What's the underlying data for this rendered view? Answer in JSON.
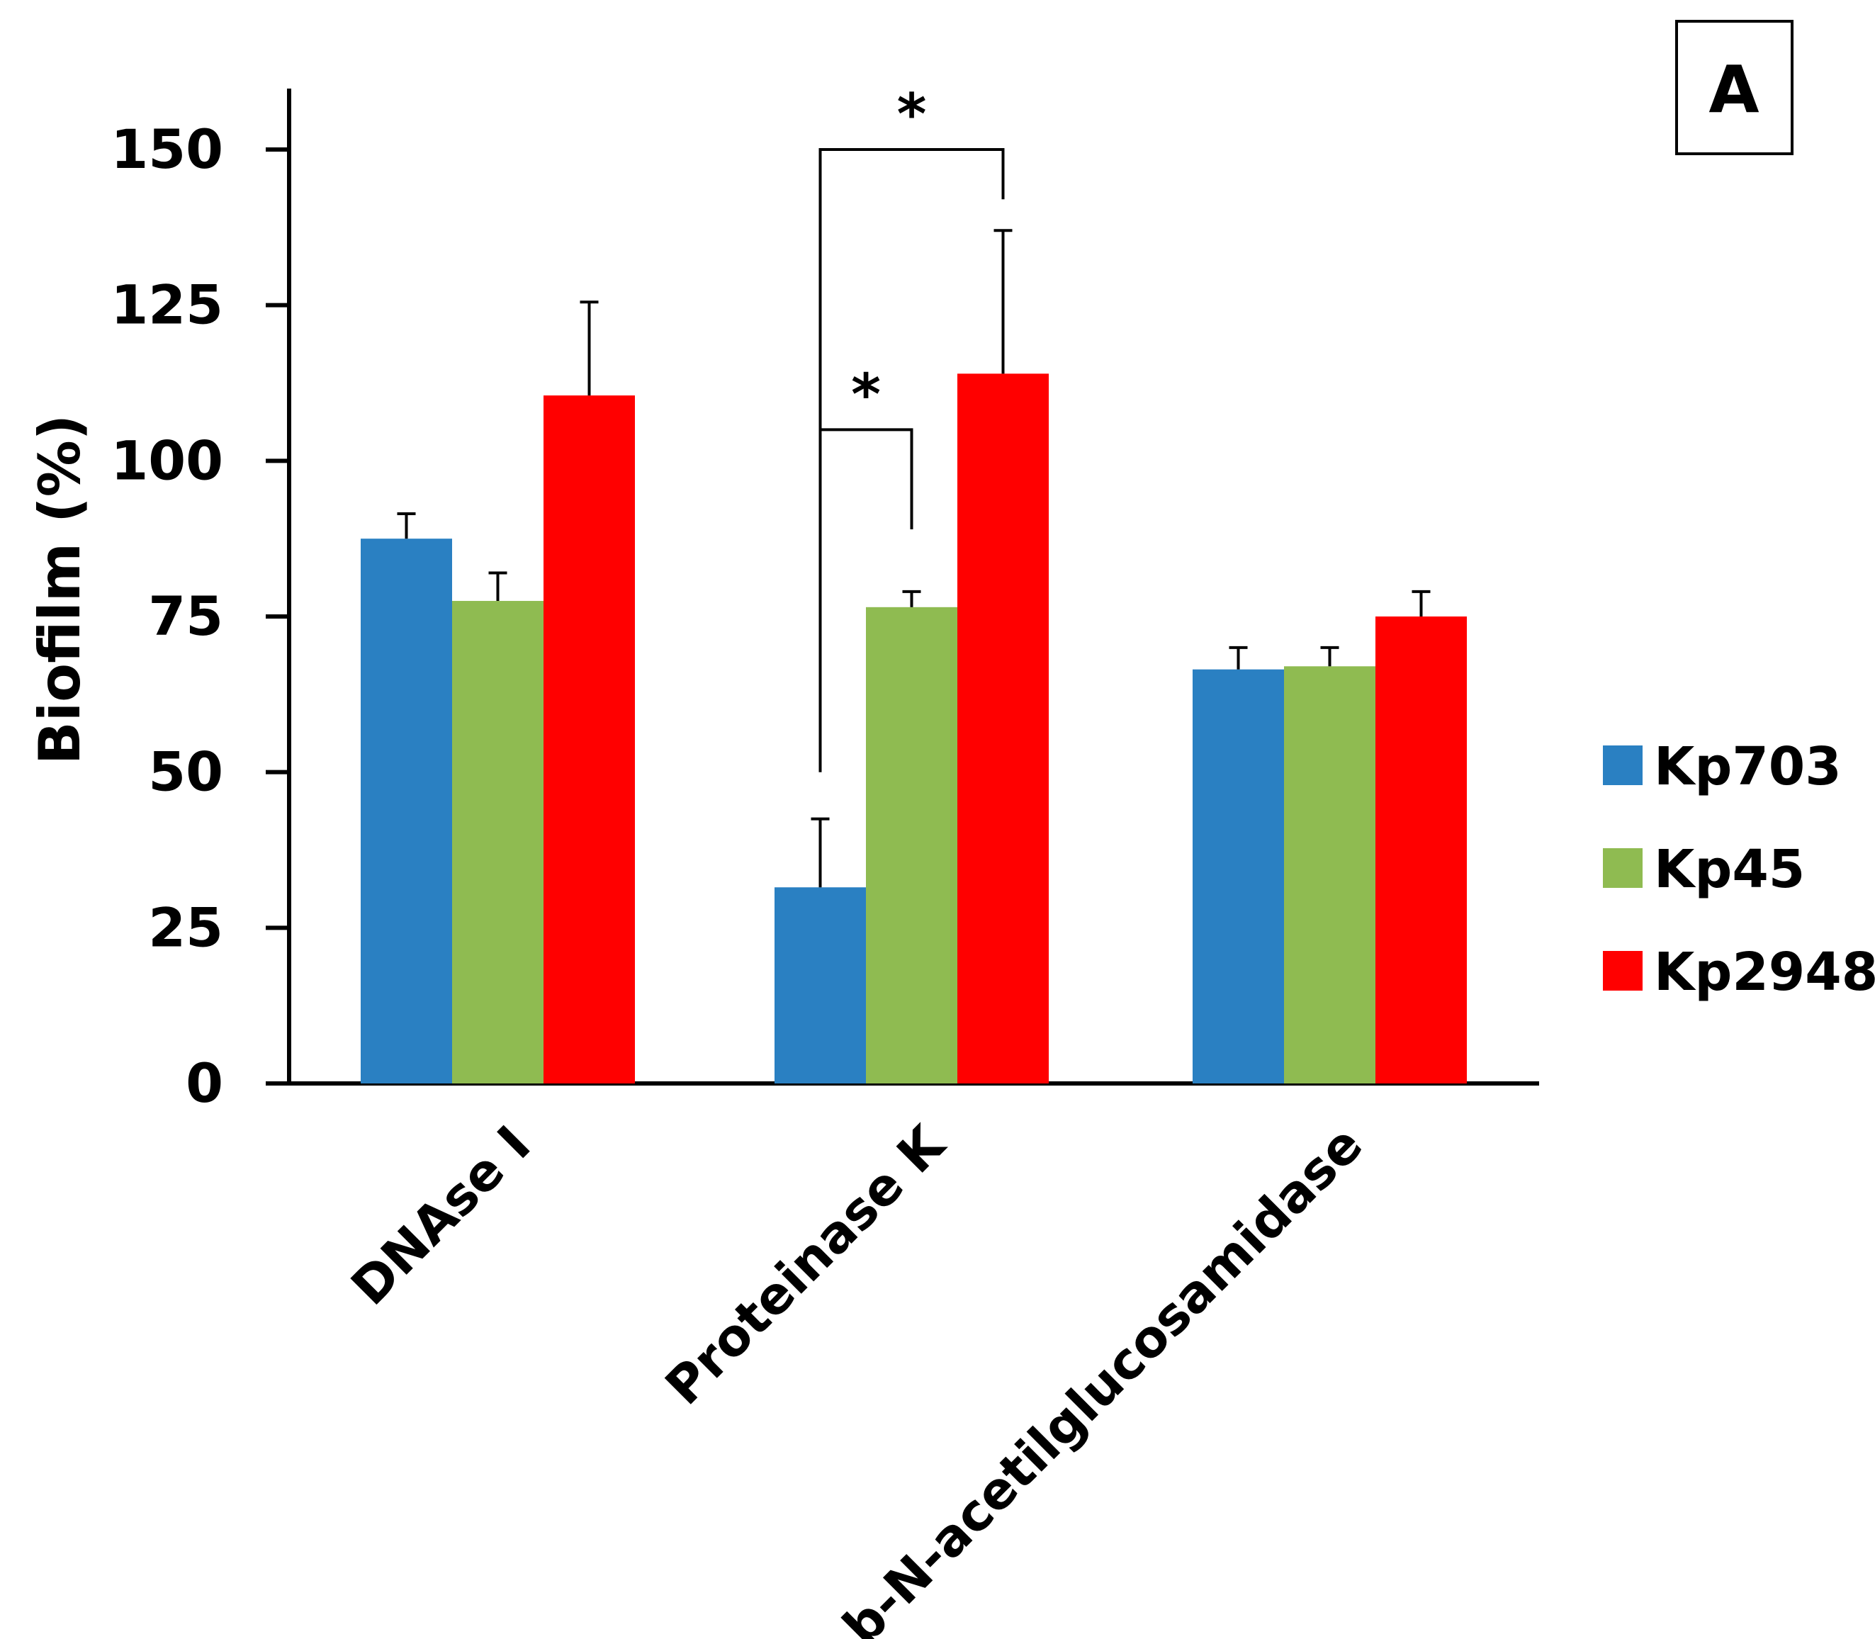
{
  "panel_label": "A",
  "chart_data": {
    "type": "bar",
    "title": "",
    "xlabel": "",
    "ylabel": "Biofilm (%)",
    "ylim": [
      0,
      150
    ],
    "yticks": [
      0,
      25,
      50,
      75,
      100,
      125,
      150
    ],
    "grid": false,
    "legend_position": "right",
    "categories": [
      "DNAse I",
      "Proteinase K",
      "b-N-acetilglucosamidase"
    ],
    "series": [
      {
        "name": "Kp703",
        "color": "#2a80c2",
        "values": [
          87.5,
          31.5,
          66.5
        ],
        "errors": [
          4.0,
          11.0,
          3.5
        ]
      },
      {
        "name": "Kp45",
        "color": "#8fbb51",
        "values": [
          77.5,
          76.5,
          67.0
        ],
        "errors": [
          4.5,
          2.5,
          3.0
        ]
      },
      {
        "name": "Kp2948",
        "color": "#ff0000",
        "values": [
          110.5,
          114.0,
          75.0
        ],
        "errors": [
          15.0,
          23.0,
          4.0
        ]
      }
    ],
    "annotations": [
      {
        "text": "*",
        "category": "Proteinase K",
        "from_series": "Kp703",
        "to_series": "Kp2948",
        "bracket_y": 150,
        "left_drop_to": 50,
        "right_drop_to": 142
      },
      {
        "text": "*",
        "category": "Proteinase K",
        "from_series": "Kp703",
        "to_series": "Kp45",
        "bracket_y": 105,
        "left_drop_to": 50,
        "right_drop_to": 89
      }
    ]
  }
}
